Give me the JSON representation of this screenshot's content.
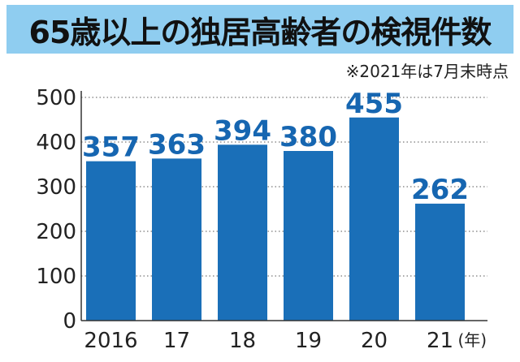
{
  "chart_data": {
    "type": "bar",
    "title": "65歳以上の独居高齢者の検視件数",
    "note": "※2021年は7月末時点",
    "categories": [
      "2016",
      "17",
      "18",
      "19",
      "20",
      "21"
    ],
    "values": [
      357,
      363,
      394,
      380,
      455,
      262
    ],
    "x_unit": "(年)",
    "ylim": [
      0,
      500
    ],
    "yticks": [
      0,
      100,
      200,
      300,
      400,
      500
    ],
    "grid": "dotted horizontal",
    "bar_color": "#1a6fb8",
    "label_color": "#1666b1"
  }
}
